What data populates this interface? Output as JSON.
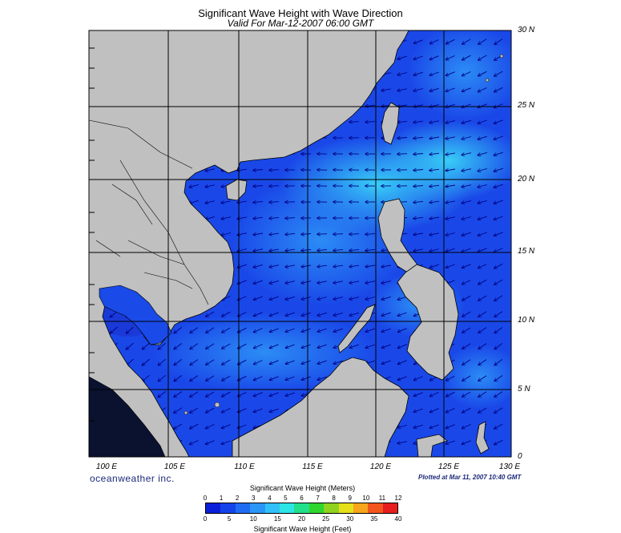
{
  "title": "Significant Wave Height with Wave Direction",
  "subtitle": "Valid For Mar-12-2007 06:00 GMT",
  "lat_labels": [
    "30 N",
    "25 N",
    "20 N",
    "15 N",
    "10 N",
    "5 N",
    "0"
  ],
  "lon_labels": [
    "100 E",
    "105 E",
    "110 E",
    "115 E",
    "120 E",
    "125 E",
    "130 E"
  ],
  "brand": "oceanweather inc.",
  "plotted": "Plotted at Mar 11, 2007 10:40 GMT",
  "colorbar": {
    "meters_label": "Significant Wave Height (Meters)",
    "feet_label": "Significant Wave Height (Feet)",
    "meter_ticks": [
      "0",
      "1",
      "2",
      "3",
      "4",
      "5",
      "6",
      "7",
      "8",
      "9",
      "10",
      "11",
      "12"
    ],
    "feet_ticks": [
      "0",
      "5",
      "10",
      "15",
      "20",
      "25",
      "30",
      "35",
      "40"
    ],
    "colors": [
      "#0a1fd8",
      "#1543ea",
      "#1f6cf2",
      "#2a96f7",
      "#33c0f9",
      "#2ce6e6",
      "#22e08a",
      "#2fd62f",
      "#8fd31e",
      "#e6e01a",
      "#f6a51c",
      "#f2561c",
      "#e61e1e"
    ]
  },
  "colors": {
    "land": "#c0c0c0",
    "sea_low": "#1a45e6",
    "sea_mid": "#2a7cf4",
    "sea_high": "#38c9f7",
    "grid": "#000000",
    "arrow": "#000080"
  }
}
